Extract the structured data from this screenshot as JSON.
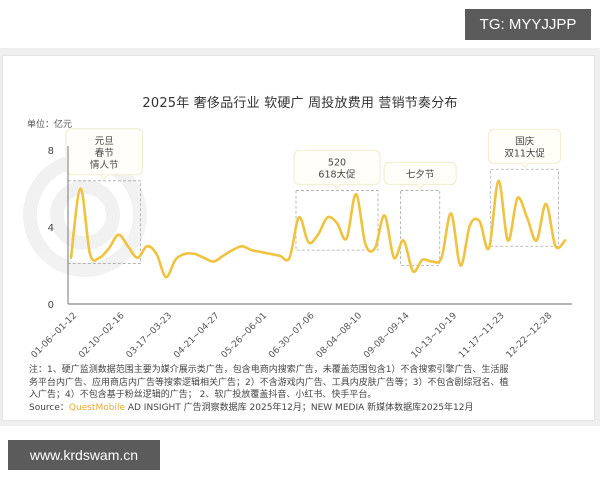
{
  "watermarks": {
    "top_right": "TG: MYYJJPP",
    "bottom_left": "www.krdswam.cn"
  },
  "chart_data": {
    "type": "line",
    "title": "2025年 奢侈品行业 软硬广 周投放费用 营销节奏分布",
    "unit_label": "单位：亿元",
    "xlabel": "",
    "ylabel": "亿元",
    "ylim": [
      0,
      8
    ],
    "yticks": [
      "0",
      "4",
      "8"
    ],
    "grid": false,
    "legend": "none",
    "line_color": "#f0c040",
    "x_tick_labels": [
      "01-06~01-12",
      "02-10~02-16",
      "03-17~03-23",
      "04-21~04-27",
      "05-26~06-01",
      "06-30~07-06",
      "08-04~08-10",
      "09-08~09-14",
      "10-13~10-19",
      "11-17~11-23",
      "12-22~12-28"
    ],
    "series": [
      {
        "name": "周投放费用",
        "values": [
          2.4,
          6.0,
          2.6,
          2.4,
          2.9,
          3.6,
          3.0,
          2.4,
          3.0,
          2.6,
          1.4,
          2.3,
          2.6,
          2.6,
          2.4,
          2.2,
          2.5,
          2.8,
          3.0,
          2.8,
          2.7,
          2.6,
          2.5,
          2.4,
          4.5,
          3.2,
          3.6,
          4.5,
          4.2,
          3.4,
          5.7,
          3.1,
          2.9,
          4.6,
          2.4,
          3.3,
          1.7,
          2.3,
          2.2,
          2.4,
          4.7,
          2.0,
          4.1,
          4.3,
          2.9,
          6.4,
          3.3,
          5.5,
          4.5,
          3.3,
          5.2,
          3.0,
          3.3
        ]
      }
    ],
    "annotations": [
      {
        "label": "元旦\n春节\n情人节",
        "lines": [
          "元旦",
          "春节",
          "情人节"
        ],
        "x_range": [
          0,
          7
        ],
        "y_range": [
          2.1,
          6.4
        ]
      },
      {
        "label": "520\n618大促",
        "lines": [
          "520",
          "618大促"
        ],
        "x_range": [
          24,
          32
        ],
        "y_range": [
          2.8,
          5.9
        ]
      },
      {
        "label": "七夕节",
        "lines": [
          "七夕节"
        ],
        "x_range": [
          35,
          38.5
        ],
        "y_range": [
          2.0,
          5.9
        ]
      },
      {
        "label": "国庆\n双11大促",
        "lines": [
          "国庆",
          "双11大促"
        ],
        "x_range": [
          44.5,
          51
        ],
        "y_range": [
          3.0,
          7.0
        ]
      }
    ]
  },
  "notes": {
    "line1": "注：1、硬广监测数据范围主要为媒介展示类广告，包含电商内搜索广告，未覆盖范围包含1）不含搜索引擎广告、生活服",
    "line2": "务平台内广告、应用商店内广告等搜索逻辑相关广告；2）不含游戏内广告、工具内皮肤广告等；3）不包含剧综冠名、植",
    "line3": "入广告；4）不包含基于粉丝逻辑的广告； 2、软广投放覆盖抖音、小红书、快手平台。",
    "source_prefix": "Source：",
    "source_brand": "QuestMobile",
    "source_rest": " AD INSIGHT 广告洞察数据库 2025年12月；NEW MEDIA 新媒体数据库2025年12月"
  }
}
